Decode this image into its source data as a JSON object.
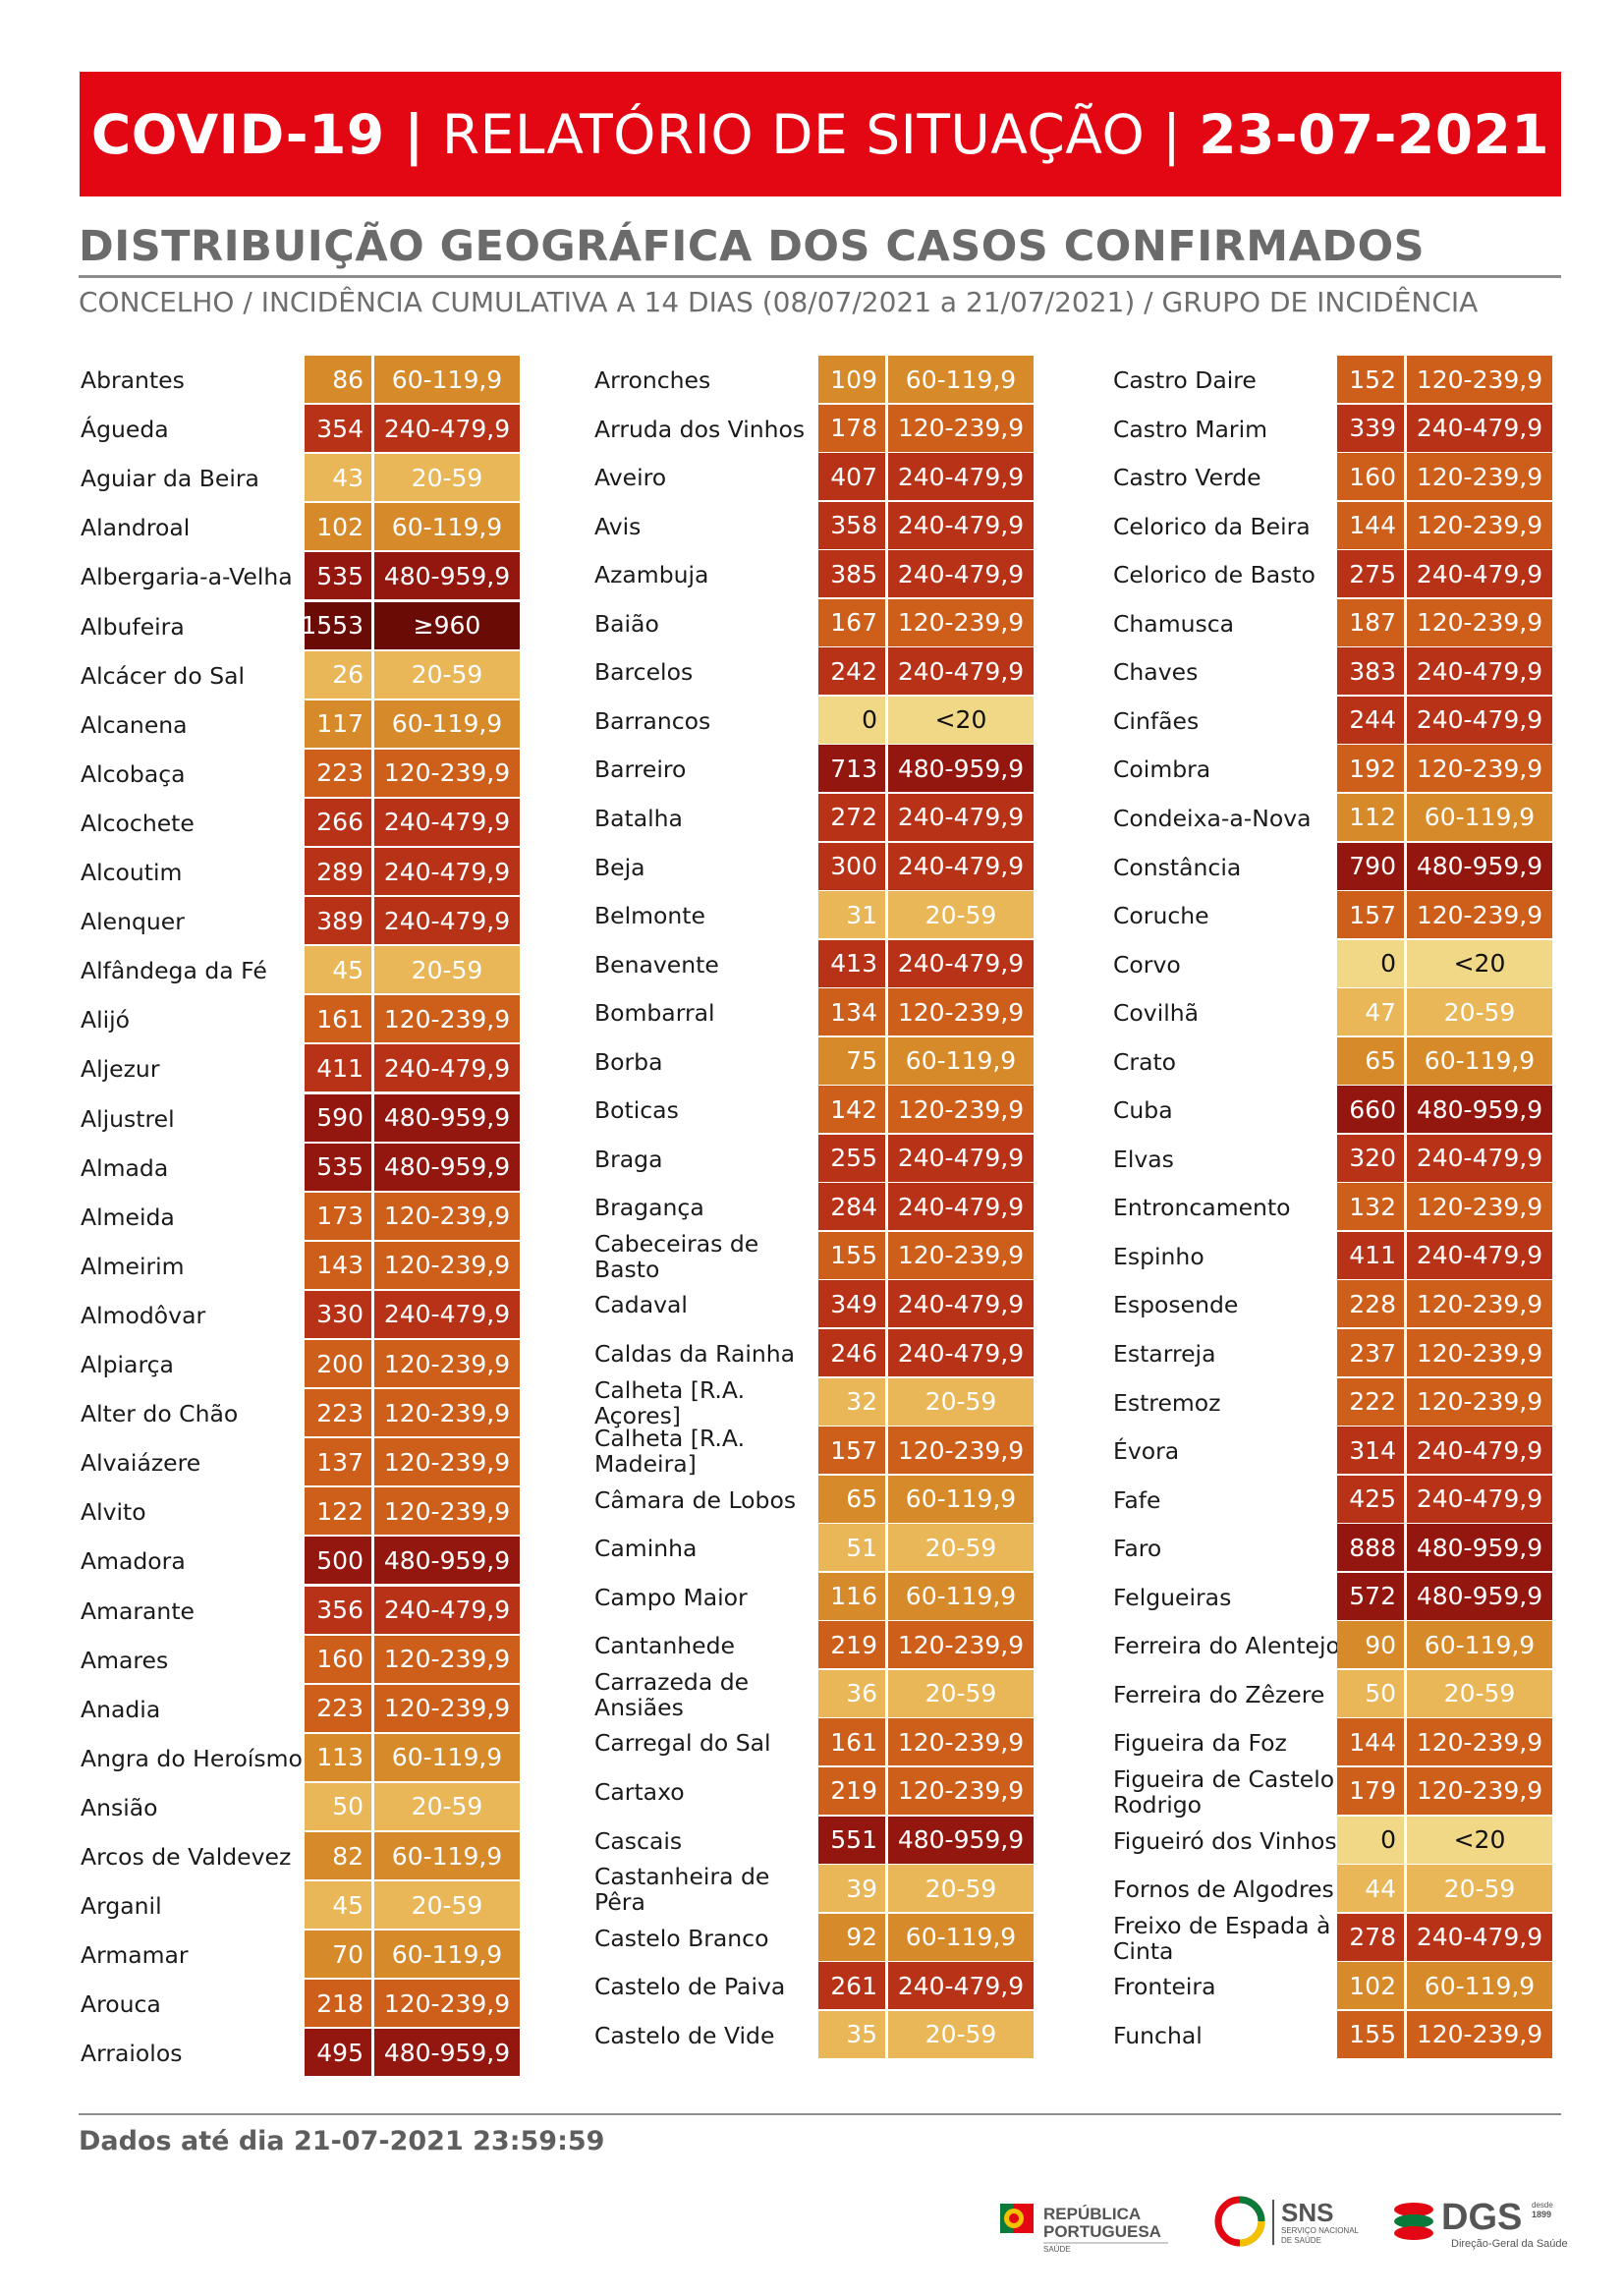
{
  "header": {
    "prefix": "COVID-19 |",
    "middle": " RELATÓRIO DE SITUAÇÃO | ",
    "date": "23-07-2021"
  },
  "title": "DISTRIBUIÇÃO GEOGRÁFICA DOS CASOS CONFIRMADOS",
  "subtitle": "CONCELHO / INCIDÊNCIA CUMULATIVA A 14 DIAS (08/07/2021 a 21/07/2021) / GRUPO DE INCIDÊNCIA",
  "colors": {
    "<20": "#f0d886",
    "20-59": "#e9b658",
    "60-119,9": "#d78a2a",
    "120-239,9": "#cd5f1b",
    "240-479,9": "#b83218",
    "480-959,9": "#93170e",
    "≥960": "#6a0b06"
  },
  "columns": [
    [
      {
        "name": "Abrantes",
        "value": "86",
        "group": "60-119,9"
      },
      {
        "name": "Águeda",
        "value": "354",
        "group": "240-479,9"
      },
      {
        "name": "Aguiar da Beira",
        "value": "43",
        "group": "20-59"
      },
      {
        "name": "Alandroal",
        "value": "102",
        "group": "60-119,9"
      },
      {
        "name": "Albergaria-a-Velha",
        "value": "535",
        "group": "480-959,9"
      },
      {
        "name": "Albufeira",
        "value": "1553",
        "group": "≥960"
      },
      {
        "name": "Alcácer do Sal",
        "value": "26",
        "group": "20-59"
      },
      {
        "name": "Alcanena",
        "value": "117",
        "group": "60-119,9"
      },
      {
        "name": "Alcobaça",
        "value": "223",
        "group": "120-239,9"
      },
      {
        "name": "Alcochete",
        "value": "266",
        "group": "240-479,9"
      },
      {
        "name": "Alcoutim",
        "value": "289",
        "group": "240-479,9"
      },
      {
        "name": "Alenquer",
        "value": "389",
        "group": "240-479,9"
      },
      {
        "name": "Alfândega da Fé",
        "value": "45",
        "group": "20-59"
      },
      {
        "name": "Alijó",
        "value": "161",
        "group": "120-239,9"
      },
      {
        "name": "Aljezur",
        "value": "411",
        "group": "240-479,9"
      },
      {
        "name": "Aljustrel",
        "value": "590",
        "group": "480-959,9"
      },
      {
        "name": "Almada",
        "value": "535",
        "group": "480-959,9"
      },
      {
        "name": "Almeida",
        "value": "173",
        "group": "120-239,9"
      },
      {
        "name": "Almeirim",
        "value": "143",
        "group": "120-239,9"
      },
      {
        "name": "Almodôvar",
        "value": "330",
        "group": "240-479,9"
      },
      {
        "name": "Alpiarça",
        "value": "200",
        "group": "120-239,9"
      },
      {
        "name": "Alter do Chão",
        "value": "223",
        "group": "120-239,9"
      },
      {
        "name": "Alvaiázere",
        "value": "137",
        "group": "120-239,9"
      },
      {
        "name": "Alvito",
        "value": "122",
        "group": "120-239,9"
      },
      {
        "name": "Amadora",
        "value": "500",
        "group": "480-959,9"
      },
      {
        "name": "Amarante",
        "value": "356",
        "group": "240-479,9"
      },
      {
        "name": "Amares",
        "value": "160",
        "group": "120-239,9"
      },
      {
        "name": "Anadia",
        "value": "223",
        "group": "120-239,9"
      },
      {
        "name": "Angra do Heroísmo",
        "value": "113",
        "group": "60-119,9"
      },
      {
        "name": "Ansião",
        "value": "50",
        "group": "20-59"
      },
      {
        "name": "Arcos de Valdevez",
        "value": "82",
        "group": "60-119,9"
      },
      {
        "name": "Arganil",
        "value": "45",
        "group": "20-59"
      },
      {
        "name": "Armamar",
        "value": "70",
        "group": "60-119,9"
      },
      {
        "name": "Arouca",
        "value": "218",
        "group": "120-239,9"
      },
      {
        "name": "Arraiolos",
        "value": "495",
        "group": "480-959,9"
      }
    ],
    [
      {
        "name": "Arronches",
        "value": "109",
        "group": "60-119,9"
      },
      {
        "name": "Arruda dos Vinhos",
        "value": "178",
        "group": "120-239,9"
      },
      {
        "name": "Aveiro",
        "value": "407",
        "group": "240-479,9"
      },
      {
        "name": "Avis",
        "value": "358",
        "group": "240-479,9"
      },
      {
        "name": "Azambuja",
        "value": "385",
        "group": "240-479,9"
      },
      {
        "name": "Baião",
        "value": "167",
        "group": "120-239,9"
      },
      {
        "name": "Barcelos",
        "value": "242",
        "group": "240-479,9"
      },
      {
        "name": "Barrancos",
        "value": "0",
        "group": "<20"
      },
      {
        "name": "Barreiro",
        "value": "713",
        "group": "480-959,9"
      },
      {
        "name": "Batalha",
        "value": "272",
        "group": "240-479,9"
      },
      {
        "name": "Beja",
        "value": "300",
        "group": "240-479,9"
      },
      {
        "name": "Belmonte",
        "value": "31",
        "group": "20-59"
      },
      {
        "name": "Benavente",
        "value": "413",
        "group": "240-479,9"
      },
      {
        "name": "Bombarral",
        "value": "134",
        "group": "120-239,9"
      },
      {
        "name": "Borba",
        "value": "75",
        "group": "60-119,9"
      },
      {
        "name": "Boticas",
        "value": "142",
        "group": "120-239,9"
      },
      {
        "name": "Braga",
        "value": "255",
        "group": "240-479,9"
      },
      {
        "name": "Bragança",
        "value": "284",
        "group": "240-479,9"
      },
      {
        "name": "Cabeceiras de Basto",
        "value": "155",
        "group": "120-239,9"
      },
      {
        "name": "Cadaval",
        "value": "349",
        "group": "240-479,9"
      },
      {
        "name": "Caldas da Rainha",
        "value": "246",
        "group": "240-479,9"
      },
      {
        "name": "Calheta [R.A. Açores]",
        "value": "32",
        "group": "20-59"
      },
      {
        "name": "Calheta [R.A. Madeira]",
        "value": "157",
        "group": "120-239,9"
      },
      {
        "name": "Câmara de Lobos",
        "value": "65",
        "group": "60-119,9"
      },
      {
        "name": "Caminha",
        "value": "51",
        "group": "20-59"
      },
      {
        "name": "Campo Maior",
        "value": "116",
        "group": "60-119,9"
      },
      {
        "name": "Cantanhede",
        "value": "219",
        "group": "120-239,9"
      },
      {
        "name": "Carrazeda de Ansiães",
        "value": "36",
        "group": "20-59"
      },
      {
        "name": "Carregal do Sal",
        "value": "161",
        "group": "120-239,9"
      },
      {
        "name": "Cartaxo",
        "value": "219",
        "group": "120-239,9"
      },
      {
        "name": "Cascais",
        "value": "551",
        "group": "480-959,9"
      },
      {
        "name": "Castanheira de Pêra",
        "value": "39",
        "group": "20-59"
      },
      {
        "name": "Castelo Branco",
        "value": "92",
        "group": "60-119,9"
      },
      {
        "name": "Castelo de Paiva",
        "value": "261",
        "group": "240-479,9"
      },
      {
        "name": "Castelo de Vide",
        "value": "35",
        "group": "20-59"
      }
    ],
    [
      {
        "name": "Castro Daire",
        "value": "152",
        "group": "120-239,9"
      },
      {
        "name": "Castro Marim",
        "value": "339",
        "group": "240-479,9"
      },
      {
        "name": "Castro Verde",
        "value": "160",
        "group": "120-239,9"
      },
      {
        "name": "Celorico da Beira",
        "value": "144",
        "group": "120-239,9"
      },
      {
        "name": "Celorico de Basto",
        "value": "275",
        "group": "240-479,9"
      },
      {
        "name": "Chamusca",
        "value": "187",
        "group": "120-239,9"
      },
      {
        "name": "Chaves",
        "value": "383",
        "group": "240-479,9"
      },
      {
        "name": "Cinfães",
        "value": "244",
        "group": "240-479,9"
      },
      {
        "name": "Coimbra",
        "value": "192",
        "group": "120-239,9"
      },
      {
        "name": "Condeixa-a-Nova",
        "value": "112",
        "group": "60-119,9"
      },
      {
        "name": "Constância",
        "value": "790",
        "group": "480-959,9"
      },
      {
        "name": "Coruche",
        "value": "157",
        "group": "120-239,9"
      },
      {
        "name": "Corvo",
        "value": "0",
        "group": "<20"
      },
      {
        "name": "Covilhã",
        "value": "47",
        "group": "20-59"
      },
      {
        "name": "Crato",
        "value": "65",
        "group": "60-119,9"
      },
      {
        "name": "Cuba",
        "value": "660",
        "group": "480-959,9"
      },
      {
        "name": "Elvas",
        "value": "320",
        "group": "240-479,9"
      },
      {
        "name": "Entroncamento",
        "value": "132",
        "group": "120-239,9"
      },
      {
        "name": "Espinho",
        "value": "411",
        "group": "240-479,9"
      },
      {
        "name": "Esposende",
        "value": "228",
        "group": "120-239,9"
      },
      {
        "name": "Estarreja",
        "value": "237",
        "group": "120-239,9"
      },
      {
        "name": "Estremoz",
        "value": "222",
        "group": "120-239,9"
      },
      {
        "name": "Évora",
        "value": "314",
        "group": "240-479,9"
      },
      {
        "name": "Fafe",
        "value": "425",
        "group": "240-479,9"
      },
      {
        "name": "Faro",
        "value": "888",
        "group": "480-959,9"
      },
      {
        "name": "Felgueiras",
        "value": "572",
        "group": "480-959,9"
      },
      {
        "name": "Ferreira do Alentejo",
        "value": "90",
        "group": "60-119,9"
      },
      {
        "name": "Ferreira do Zêzere",
        "value": "50",
        "group": "20-59"
      },
      {
        "name": "Figueira da Foz",
        "value": "144",
        "group": "120-239,9"
      },
      {
        "name": "Figueira de Castelo Rodrigo",
        "value": "179",
        "group": "120-239,9"
      },
      {
        "name": "Figueiró dos Vinhos",
        "value": "0",
        "group": "<20"
      },
      {
        "name": "Fornos de Algodres",
        "value": "44",
        "group": "20-59"
      },
      {
        "name": "Freixo de Espada à Cinta",
        "value": "278",
        "group": "240-479,9"
      },
      {
        "name": "Fronteira",
        "value": "102",
        "group": "60-119,9"
      },
      {
        "name": "Funchal",
        "value": "155",
        "group": "120-239,9"
      }
    ]
  ],
  "footer": "Dados até dia 21-07-2021 23:59:59",
  "logos": {
    "republica": [
      "REPÚBLICA",
      "PORTUGUESA",
      "SAÚDE"
    ],
    "sns": [
      "SNS",
      "SERVIÇO NACIONAL",
      "DE SAÚDE"
    ],
    "dgs": [
      "DGS",
      "desde",
      "1899",
      "Direção-Geral da Saúde"
    ]
  }
}
